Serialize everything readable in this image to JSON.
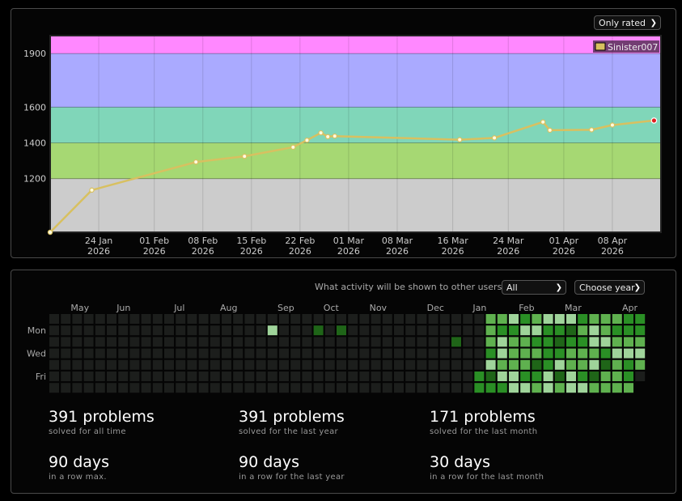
{
  "rating_panel": {
    "filter_label": "Only rated",
    "chevron_icon": "chevron-down-icon"
  },
  "chart_data": {
    "type": "line",
    "title": "",
    "xlabel": "",
    "ylabel": "",
    "ylim": [
      900,
      2000
    ],
    "xlim": [
      "2026-01-17",
      "2026-04-15"
    ],
    "grid": true,
    "legend": "top-right",
    "bands": [
      {
        "from": 900,
        "to": 1200,
        "color": "#cccccc"
      },
      {
        "from": 1200,
        "to": 1400,
        "color": "#a6d873"
      },
      {
        "from": 1400,
        "to": 1600,
        "color": "#80d6b9"
      },
      {
        "from": 1600,
        "to": 1900,
        "color": "#aaaaff"
      },
      {
        "from": 1900,
        "to": 2000,
        "color": "#ff88ff"
      }
    ],
    "y_ticks": [
      1200,
      1400,
      1600,
      1900
    ],
    "x_ticks": [
      {
        "date": "2026-01-24",
        "day": "24 Jan",
        "year": "2026"
      },
      {
        "date": "2026-02-01",
        "day": "01 Feb",
        "year": "2026"
      },
      {
        "date": "2026-02-08",
        "day": "08 Feb",
        "year": "2026"
      },
      {
        "date": "2026-02-15",
        "day": "15 Feb",
        "year": "2026"
      },
      {
        "date": "2026-02-22",
        "day": "22 Feb",
        "year": "2026"
      },
      {
        "date": "2026-03-01",
        "day": "01 Mar",
        "year": "2026"
      },
      {
        "date": "2026-03-08",
        "day": "08 Mar",
        "year": "2026"
      },
      {
        "date": "2026-03-16",
        "day": "16 Mar",
        "year": "2026"
      },
      {
        "date": "2026-03-24",
        "day": "24 Mar",
        "year": "2026"
      },
      {
        "date": "2026-04-01",
        "day": "01 Apr",
        "year": "2026"
      },
      {
        "date": "2026-04-08",
        "day": "08 Apr",
        "year": "2026"
      }
    ],
    "series": [
      {
        "name": "Sinister007",
        "color": "#d8c060",
        "points": [
          {
            "x": "2026-01-17",
            "y": 900
          },
          {
            "x": "2026-01-23",
            "y": 1136
          },
          {
            "x": "2026-02-07",
            "y": 1293
          },
          {
            "x": "2026-02-14",
            "y": 1325
          },
          {
            "x": "2026-02-21",
            "y": 1376
          },
          {
            "x": "2026-02-23",
            "y": 1415
          },
          {
            "x": "2026-02-25",
            "y": 1456
          },
          {
            "x": "2026-02-26",
            "y": 1435
          },
          {
            "x": "2026-02-27",
            "y": 1438
          },
          {
            "x": "2026-03-17",
            "y": 1418
          },
          {
            "x": "2026-03-22",
            "y": 1428
          },
          {
            "x": "2026-03-29",
            "y": 1517
          },
          {
            "x": "2026-03-30",
            "y": 1471
          },
          {
            "x": "2026-04-05",
            "y": 1473
          },
          {
            "x": "2026-04-08",
            "y": 1500
          },
          {
            "x": "2026-04-14",
            "y": 1525
          }
        ]
      }
    ]
  },
  "activity": {
    "question": "What activity will be shown to other users:",
    "visibility_value": "All",
    "year_value": "Choose year",
    "months": [
      {
        "label": "May",
        "week": 2
      },
      {
        "label": "Jun",
        "week": 6
      },
      {
        "label": "Jul",
        "week": 11
      },
      {
        "label": "Aug",
        "week": 15
      },
      {
        "label": "Sep",
        "week": 20
      },
      {
        "label": "Oct",
        "week": 24
      },
      {
        "label": "Nov",
        "week": 28
      },
      {
        "label": "Dec",
        "week": 33
      },
      {
        "label": "Jan",
        "week": 37
      },
      {
        "label": "Feb",
        "week": 41
      },
      {
        "label": "Mar",
        "week": 45
      },
      {
        "label": "Apr",
        "week": 50
      }
    ],
    "weekdays": [
      {
        "label": "Mon",
        "row": 1
      },
      {
        "label": "Wed",
        "row": 3
      },
      {
        "label": "Fri",
        "row": 5
      }
    ],
    "level_colors": [
      "#1c1e1c",
      "#9fd49a",
      "#5fb14f",
      "#2a8f25",
      "#1f6518"
    ],
    "heatmap_rows": [
      "0000000000000000000000000000000000000022132111322233",
      "0000000000000000000000000000000000000023311334212333",
      "0000000000000000000000000000000000000021223343311222",
      "0000000000000000000000000000000000000031222332223111",
      "0000000000000000000000000000000000000012224312214232",
      "0000000000000000000000000000000000000341133141342230",
      "000000000000000000000000000000000000033311212112222"
    ],
    "highlights": [
      {
        "week": 19,
        "row": 1,
        "level": 1
      },
      {
        "week": 23,
        "row": 1,
        "level": 4
      },
      {
        "week": 25,
        "row": 1,
        "level": 4
      },
      {
        "week": 35,
        "row": 2,
        "level": 4
      }
    ]
  },
  "stats": [
    {
      "value": "391 problems",
      "label": "solved for all time"
    },
    {
      "value": "391 problems",
      "label": "solved for the last year"
    },
    {
      "value": "171 problems",
      "label": "solved for the last month"
    },
    {
      "value": "90 days",
      "label": "in a row max."
    },
    {
      "value": "90 days",
      "label": "in a row for the last year"
    },
    {
      "value": "30 days",
      "label": "in a row for the last month"
    }
  ]
}
